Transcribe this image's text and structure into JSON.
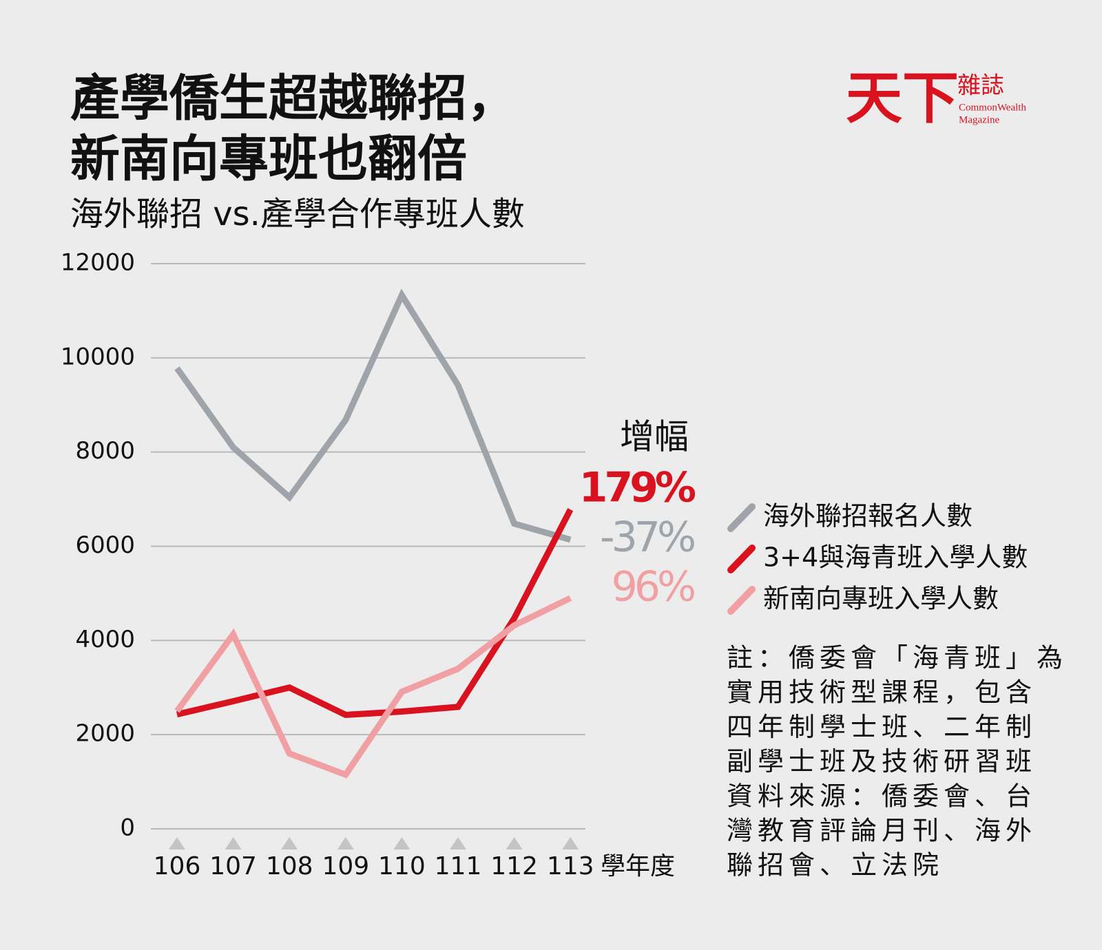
{
  "chart_data": {
    "type": "line",
    "title": [
      "產學僑生超越聯招，",
      "新南向專班也翻倍"
    ],
    "subtitle": "海外聯招 vs.產學合作專班人數",
    "logo": {
      "main": "天下",
      "side": "雜誌",
      "en1": "CommonWealth",
      "en2": "Magazine"
    },
    "categories": [
      "106",
      "107",
      "108",
      "109",
      "110",
      "111",
      "112",
      "113"
    ],
    "xlabel": "學年度",
    "ylim": [
      0,
      12000
    ],
    "yticks": [
      0,
      2000,
      4000,
      6000,
      8000,
      10000,
      12000
    ],
    "grid": true,
    "series": [
      {
        "name": "海外聯招報名人數",
        "color": "#9ea4aa",
        "values": [
          9780,
          8100,
          7040,
          8680,
          11330,
          9420,
          6480,
          6140
        ]
      },
      {
        "name": "3+4與海青班入學人數",
        "color": "#d9121f",
        "values": [
          2430,
          2710,
          3000,
          2420,
          2490,
          2590,
          4470,
          6780
        ]
      },
      {
        "name": "新南向專班入學人數",
        "color": "#f0a0a3",
        "values": [
          2500,
          4130,
          1600,
          1150,
          2910,
          3400,
          4320,
          4900
        ]
      }
    ],
    "growth_title": "增幅",
    "growth": [
      {
        "text": "179%",
        "color": "#d9121f"
      },
      {
        "text": "-37%",
        "color": "#9ea4aa"
      },
      {
        "text": "96%",
        "color": "#f0a0a3"
      }
    ],
    "note": [
      "註：僑委會「海青班」為",
      "實用技術型課程，包含",
      "四年制學士班、二年制",
      "副學士班及技術研習班",
      "資料來源：僑委會、台",
      "灣教育評論月刊、海外",
      "聯招會、立法院"
    ]
  }
}
